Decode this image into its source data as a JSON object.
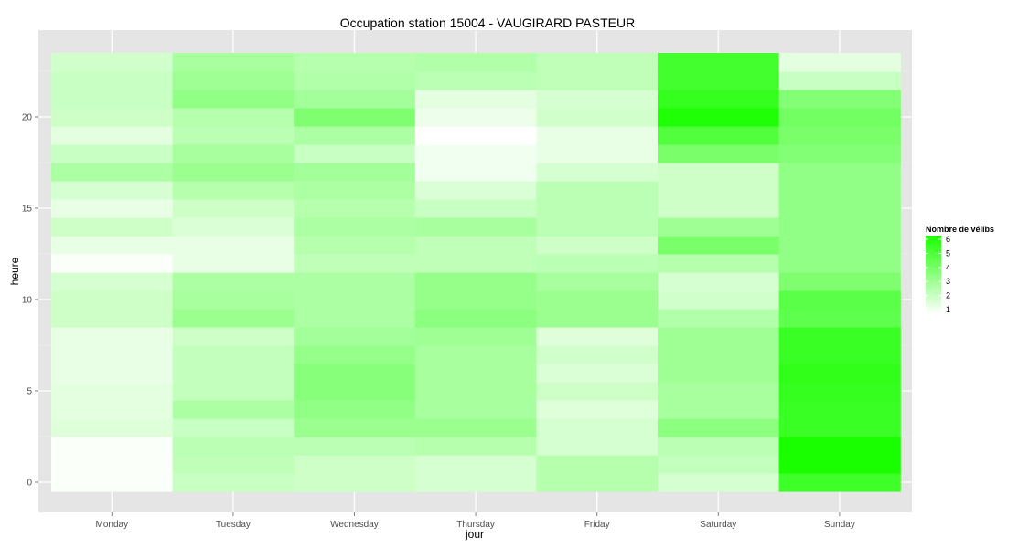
{
  "chart_data": {
    "type": "heatmap",
    "title": "Occupation station 15004 - VAUGIRARD PASTEUR",
    "xlabel": "jour",
    "ylabel": "heure",
    "categories": [
      "Monday",
      "Tuesday",
      "Wednesday",
      "Thursday",
      "Friday",
      "Saturday",
      "Sunday"
    ],
    "y_ticks": [
      0,
      5,
      10,
      15,
      20
    ],
    "ylim": [
      -0.5,
      23.5
    ],
    "grid": true,
    "legend": {
      "title": "Nombre de vélibs",
      "placement": "right",
      "labels": [
        1,
        2,
        3,
        4,
        5,
        6
      ],
      "low_color": "#ffffff",
      "high_color": "#1aff00"
    },
    "hours": [
      0,
      1,
      2,
      3,
      4,
      5,
      6,
      7,
      8,
      9,
      10,
      11,
      12,
      13,
      14,
      15,
      16,
      17,
      18,
      19,
      20,
      21,
      22,
      23
    ],
    "values": [
      [
        1.1,
        2.2,
        2.1,
        1.9,
        2.6,
        1.9,
        5.2
      ],
      [
        1.1,
        2.4,
        2.1,
        1.9,
        2.6,
        2.3,
        6.2
      ],
      [
        1.1,
        2.5,
        2.5,
        2.6,
        1.9,
        2.5,
        6.2
      ],
      [
        1.7,
        2.2,
        3.2,
        3.2,
        1.9,
        3.5,
        5.3
      ],
      [
        1.6,
        2.8,
        3.4,
        2.9,
        1.7,
        2.9,
        5.3
      ],
      [
        1.6,
        2.3,
        3.6,
        2.9,
        2.1,
        2.9,
        5.4
      ],
      [
        1.5,
        2.3,
        3.6,
        2.9,
        1.8,
        3.1,
        5.5
      ],
      [
        1.5,
        2.3,
        3.3,
        2.9,
        2.0,
        3.1,
        5.3
      ],
      [
        1.5,
        2.1,
        3.0,
        3.1,
        1.7,
        3.1,
        5.3
      ],
      [
        2.1,
        3.2,
        2.8,
        3.5,
        3.2,
        2.7,
        4.5
      ],
      [
        2.1,
        2.9,
        2.8,
        3.3,
        3.2,
        2.0,
        4.6
      ],
      [
        1.9,
        2.8,
        2.8,
        3.3,
        2.9,
        1.9,
        3.8
      ],
      [
        1.1,
        1.5,
        2.4,
        2.4,
        2.5,
        2.6,
        3.4
      ],
      [
        1.5,
        1.5,
        2.6,
        2.4,
        2.1,
        3.9,
        3.4
      ],
      [
        2.1,
        1.8,
        2.8,
        2.9,
        2.5,
        3.1,
        3.4
      ],
      [
        1.5,
        2.1,
        2.6,
        2.2,
        2.5,
        2.1,
        3.4
      ],
      [
        1.9,
        2.6,
        2.8,
        1.8,
        2.5,
        2.1,
        3.4
      ],
      [
        2.8,
        3.2,
        3.0,
        1.3,
        1.9,
        2.1,
        3.4
      ],
      [
        2.2,
        2.9,
        2.2,
        1.3,
        1.5,
        3.9,
        3.7
      ],
      [
        1.6,
        2.5,
        2.8,
        1.0,
        1.5,
        4.8,
        3.9
      ],
      [
        2.1,
        2.6,
        3.8,
        1.4,
        2.0,
        5.9,
        4.1
      ],
      [
        2.2,
        3.4,
        3.0,
        1.6,
        1.9,
        5.4,
        3.7
      ],
      [
        2.2,
        3.1,
        2.7,
        2.5,
        2.4,
        5.1,
        2.2
      ],
      [
        2.0,
        2.9,
        2.6,
        2.7,
        2.4,
        5.1,
        1.6
      ]
    ]
  }
}
